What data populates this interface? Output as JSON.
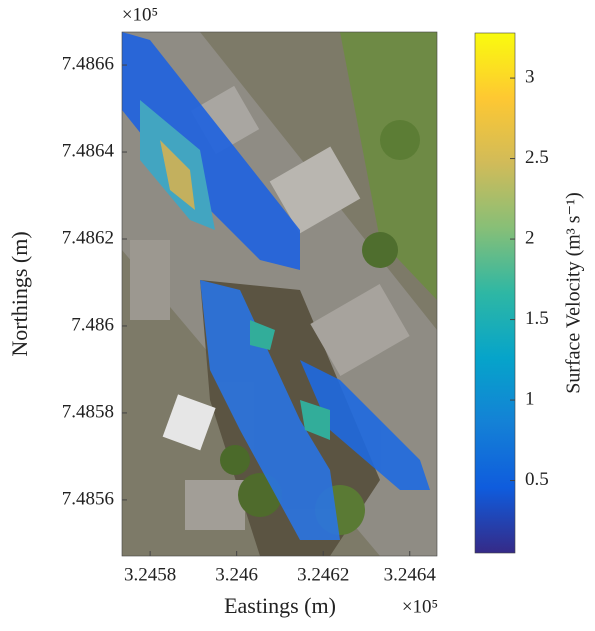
{
  "chart_data": {
    "type": "map",
    "xlabel": "Eastings (m)",
    "ylabel": "Northings (m)",
    "x_multiplier": "×10⁵",
    "y_multiplier": "×10⁵",
    "xlim": [
      324573.5,
      324646.3
    ],
    "xticks": [
      {
        "value": 324580,
        "label": "3.2458"
      },
      {
        "value": 324600,
        "label": "3.246"
      },
      {
        "value": 324620,
        "label": "3.2462"
      },
      {
        "value": 324640,
        "label": "3.2464"
      }
    ],
    "ylim": [
      748547.1,
      748667.6
    ],
    "yticks": [
      {
        "value": 748560,
        "label": "7.4856"
      },
      {
        "value": 748580,
        "label": "7.4858"
      },
      {
        "value": 748600,
        "label": "7.486"
      },
      {
        "value": 748620,
        "label": "7.4862"
      },
      {
        "value": 748640,
        "label": "7.4864"
      },
      {
        "value": 748660,
        "label": "7.4866"
      }
    ],
    "colorbar": {
      "label": "Surface Velocity (m³ s⁻¹)",
      "clim": [
        0.05,
        3.28
      ],
      "ticks": [
        0.5,
        1,
        1.5,
        2,
        2.5,
        3
      ],
      "colormap": [
        "#352a87",
        "#0f5cdd",
        "#1481d6",
        "#06a4ca",
        "#2eb7a4",
        "#87bf77",
        "#d1bb59",
        "#fec832",
        "#f9fb0e"
      ]
    }
  }
}
